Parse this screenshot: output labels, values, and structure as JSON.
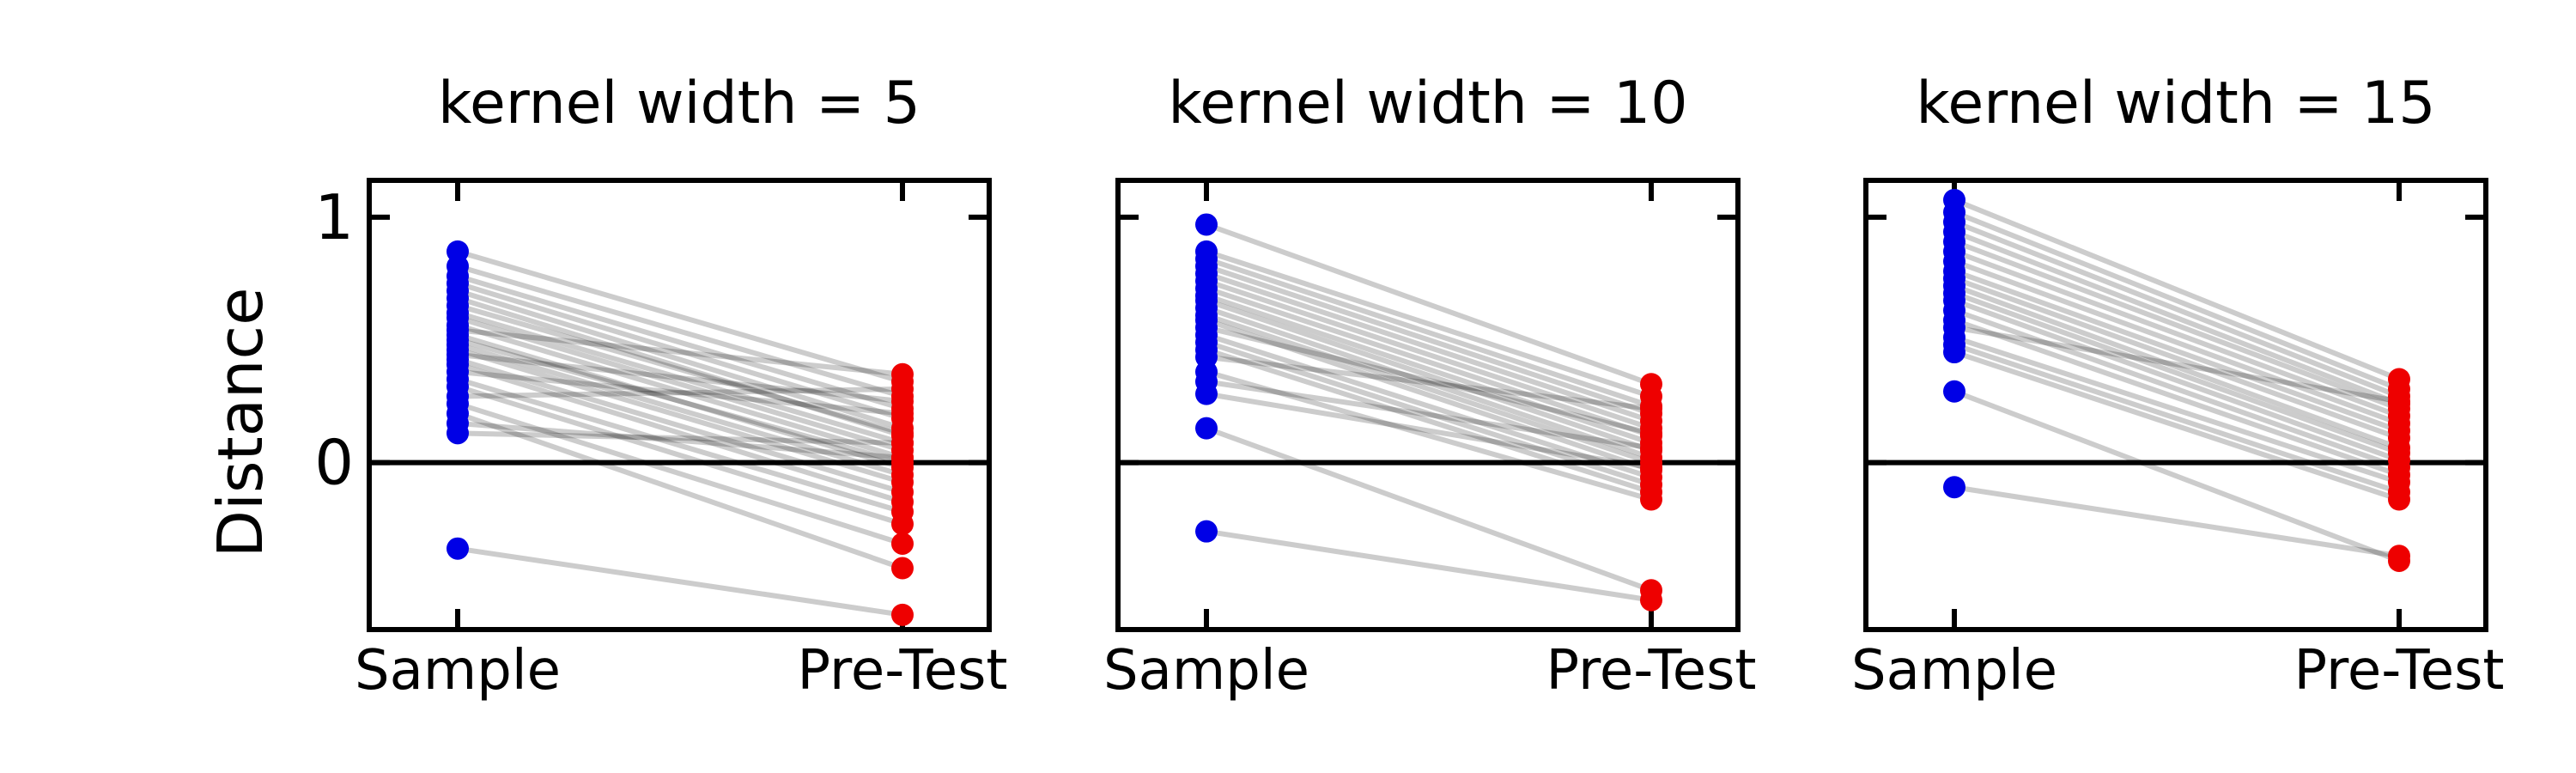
{
  "chart_data": {
    "type": "scatter",
    "ylabel": "Distance",
    "ylim": [
      -0.68,
      1.15
    ],
    "yticks": [
      0,
      1
    ],
    "categories": [
      "Sample",
      "Pre-Test"
    ],
    "reference_line_y": 0,
    "grid": false,
    "colors": {
      "Sample": "#0000e6",
      "Pre-Test": "#ee0000",
      "connector": "#000000"
    },
    "panels": [
      {
        "title": "kernel width = 5",
        "pairs": [
          [
            0.86,
            0.33
          ],
          [
            0.8,
            0.27
          ],
          [
            0.76,
            0.22
          ],
          [
            0.73,
            0.18
          ],
          [
            0.7,
            0.14
          ],
          [
            0.67,
            0.11
          ],
          [
            0.64,
            0.12
          ],
          [
            0.61,
            0.08
          ],
          [
            0.59,
            0.05
          ],
          [
            0.56,
            0.02
          ],
          [
            0.54,
            0.36
          ],
          [
            0.52,
            -0.02
          ],
          [
            0.5,
            0.0
          ],
          [
            0.48,
            -0.05
          ],
          [
            0.46,
            -0.08
          ],
          [
            0.44,
            0.25
          ],
          [
            0.42,
            -0.12
          ],
          [
            0.4,
            -0.16
          ],
          [
            0.37,
            0.2
          ],
          [
            0.34,
            -0.2
          ],
          [
            0.31,
            -0.25
          ],
          [
            0.27,
            0.3
          ],
          [
            0.24,
            -0.33
          ],
          [
            0.2,
            -0.43
          ],
          [
            0.16,
            0.02
          ],
          [
            0.12,
            0.08
          ],
          [
            -0.35,
            -0.62
          ]
        ]
      },
      {
        "title": "kernel width = 10",
        "pairs": [
          [
            0.97,
            0.32
          ],
          [
            0.86,
            0.27
          ],
          [
            0.83,
            0.23
          ],
          [
            0.8,
            0.2
          ],
          [
            0.77,
            0.17
          ],
          [
            0.74,
            0.14
          ],
          [
            0.71,
            0.11
          ],
          [
            0.68,
            0.08
          ],
          [
            0.66,
            0.05
          ],
          [
            0.63,
            0.02
          ],
          [
            0.6,
            0.0
          ],
          [
            0.58,
            -0.03
          ],
          [
            0.55,
            0.12
          ],
          [
            0.52,
            -0.06
          ],
          [
            0.49,
            -0.09
          ],
          [
            0.46,
            -0.12
          ],
          [
            0.43,
            0.22
          ],
          [
            0.37,
            -0.15
          ],
          [
            0.33,
            0.06
          ],
          [
            0.28,
            -0.02
          ],
          [
            0.14,
            -0.52
          ],
          [
            -0.28,
            -0.56
          ]
        ]
      },
      {
        "title": "kernel width = 15",
        "pairs": [
          [
            1.07,
            0.34
          ],
          [
            1.02,
            0.3
          ],
          [
            0.98,
            0.27
          ],
          [
            0.94,
            0.24
          ],
          [
            0.9,
            0.22
          ],
          [
            0.86,
            0.19
          ],
          [
            0.82,
            0.16
          ],
          [
            0.78,
            0.13
          ],
          [
            0.75,
            0.1
          ],
          [
            0.72,
            0.06
          ],
          [
            0.69,
            0.04
          ],
          [
            0.66,
            0.01
          ],
          [
            0.62,
            -0.02
          ],
          [
            0.58,
            -0.05
          ],
          [
            0.55,
            0.25
          ],
          [
            0.51,
            -0.08
          ],
          [
            0.48,
            -0.12
          ],
          [
            0.45,
            -0.15
          ],
          [
            0.29,
            -0.4
          ],
          [
            -0.1,
            -0.38
          ]
        ]
      }
    ]
  }
}
